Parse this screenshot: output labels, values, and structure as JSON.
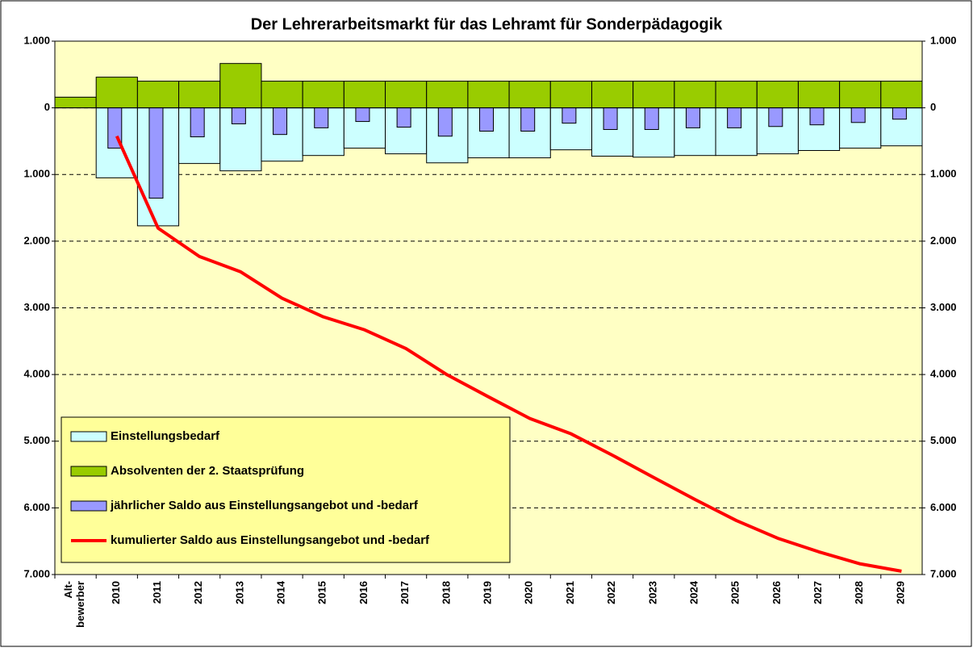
{
  "chart_data": {
    "type": "bar_line",
    "title": "Der Lehrerarbeitsmarkt für das Lehramt für Sonderpädagogik",
    "categories": [
      "Alt-\nbewerber",
      "2010",
      "2011",
      "2012",
      "2013",
      "2014",
      "2015",
      "2016",
      "2017",
      "2018",
      "2019",
      "2020",
      "2021",
      "2022",
      "2023",
      "2024",
      "2025",
      "2026",
      "2027",
      "2028",
      "2029"
    ],
    "ylim": [
      -7000,
      1000
    ],
    "yticks": [
      {
        "value": 1000,
        "label": "1.000"
      },
      0,
      {
        "value": -1000,
        "label": "1.000"
      },
      {
        "value": -2000,
        "label": "2.000"
      },
      {
        "value": -3000,
        "label": "3.000"
      },
      {
        "value": -4000,
        "label": "4.000"
      },
      {
        "value": -5000,
        "label": "5.000"
      },
      {
        "value": -6000,
        "label": "6.000"
      },
      {
        "value": -7000,
        "label": "7.000"
      }
    ],
    "grid": true,
    "legend": "lower left",
    "series": [
      {
        "name": "Einstellungsbedarf",
        "kind": "bar",
        "color": "#ccffff",
        "values": [
          null,
          -1050,
          -1770,
          -835,
          -945,
          -800,
          -715,
          -605,
          -690,
          -825,
          -750,
          -750,
          -630,
          -725,
          -740,
          -715,
          -715,
          -690,
          -640,
          -605,
          -570
        ]
      },
      {
        "name": "Absolventen der 2. Staatsprüfung",
        "kind": "bar",
        "color": "#99cc00",
        "values": [
          160,
          460,
          400,
          400,
          665,
          400,
          400,
          400,
          400,
          400,
          400,
          400,
          400,
          400,
          400,
          400,
          400,
          400,
          400,
          400,
          400
        ]
      },
      {
        "name": "jährlicher Saldo aus Einstellungsangebot und -bedarf",
        "kind": "narrowbar",
        "color": "#9999ff",
        "values": [
          null,
          -605,
          -1355,
          -435,
          -240,
          -400,
          -300,
          -205,
          -290,
          -425,
          -350,
          -350,
          -230,
          -325,
          -325,
          -300,
          -300,
          -280,
          -255,
          -220,
          -170
        ]
      },
      {
        "name": "kumulierter Saldo aus Einstellungsangebot und -bedarf",
        "kind": "line",
        "color": "#ff0000",
        "values": [
          null,
          -425,
          -1805,
          -2230,
          -2460,
          -2855,
          -3135,
          -3330,
          -3610,
          -4005,
          -4335,
          -4660,
          -4890,
          -5210,
          -5545,
          -5875,
          -6190,
          -6455,
          -6660,
          -6840,
          -6950
        ]
      }
    ]
  }
}
